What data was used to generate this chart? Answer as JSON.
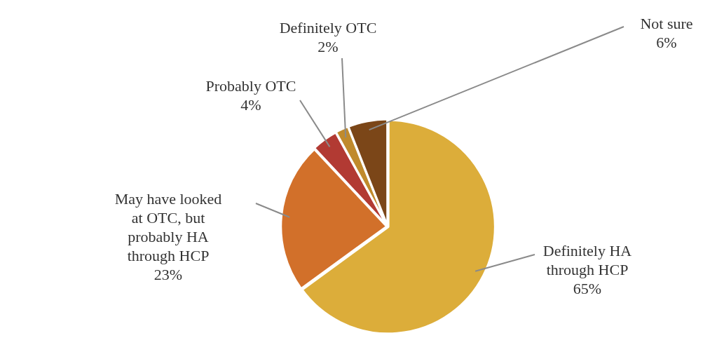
{
  "chart_data": {
    "type": "pie",
    "categories": [
      "Definitely HA through HCP",
      "May have looked at OTC, but probably HA through HCP",
      "Probably OTC",
      "Definitely OTC",
      "Not sure"
    ],
    "values": [
      65,
      23,
      4,
      2,
      6
    ],
    "value_labels": [
      "65%",
      "23%",
      "4%",
      "2%",
      "6%"
    ],
    "colors": [
      "#dcad3a",
      "#d2702a",
      "#b23a33",
      "#c08a2c",
      "#7b4618"
    ],
    "legend": false
  }
}
